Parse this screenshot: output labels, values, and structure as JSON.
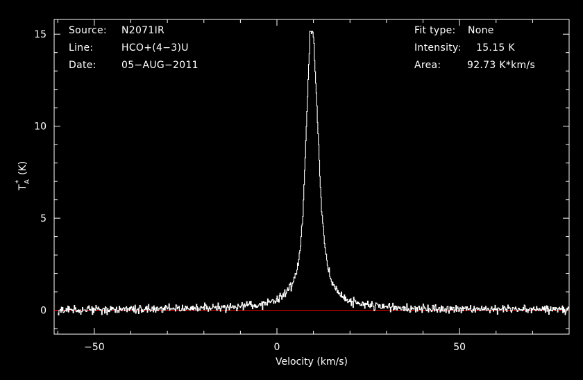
{
  "colors": {
    "background": "#000000",
    "foreground": "#ffffff",
    "baseline": "#ff0000"
  },
  "header_left": [
    {
      "label": "Source:",
      "value": "N2071IR"
    },
    {
      "label": "Line:",
      "value": "HCO+(4−3)U"
    },
    {
      "label": "Date:",
      "value": "05−AUG−2011"
    }
  ],
  "header_right": [
    {
      "label": "Fit type:",
      "value": "None"
    },
    {
      "label": "Intensity:",
      "value": "15.15 K"
    },
    {
      "label": "Area:",
      "value": "92.73 K*km/s"
    }
  ],
  "chart_data": {
    "type": "line",
    "title": "",
    "xlabel": "Velocity (km/s)",
    "ylabel_main": "T",
    "ylabel_super": "*",
    "ylabel_sub": "A",
    "ylabel_unit": "(K)",
    "xlim": [
      -61,
      80
    ],
    "ylim": [
      -1.3,
      15.8
    ],
    "xticks": [
      -50,
      0,
      50
    ],
    "xtick_labels": [
      "−50",
      "0",
      "50"
    ],
    "yticks": [
      0,
      5,
      10,
      15
    ],
    "ytick_labels": [
      "0",
      "5",
      "10",
      "15"
    ],
    "grid": false,
    "series": [
      {
        "style": "step",
        "color": "#ffffff",
        "x": [
          -60,
          -55,
          -50,
          -45,
          -40,
          -35,
          -30,
          -25,
          -20,
          -15,
          -10,
          -5,
          -2,
          0,
          2,
          4,
          5,
          6,
          7,
          8,
          9,
          10,
          11,
          12,
          13,
          14,
          15,
          17,
          20,
          25,
          30,
          35,
          40,
          45,
          50,
          55,
          60,
          65,
          70,
          75,
          80
        ],
        "y": [
          0.0,
          0.05,
          0.0,
          0.05,
          0.05,
          0.05,
          0.1,
          0.1,
          0.12,
          0.15,
          0.2,
          0.3,
          0.45,
          0.6,
          0.9,
          1.3,
          1.8,
          2.8,
          5.0,
          10.0,
          15.15,
          14.8,
          10.5,
          6.0,
          3.5,
          2.2,
          1.5,
          0.9,
          0.5,
          0.3,
          0.2,
          0.12,
          0.08,
          0.05,
          0.05,
          0.05,
          0.05,
          0.05,
          0.05,
          0.05,
          0.05
        ]
      },
      {
        "style": "baseline",
        "color": "#ff0000",
        "x": [
          -61,
          80
        ],
        "y": [
          0,
          0
        ]
      }
    ]
  }
}
